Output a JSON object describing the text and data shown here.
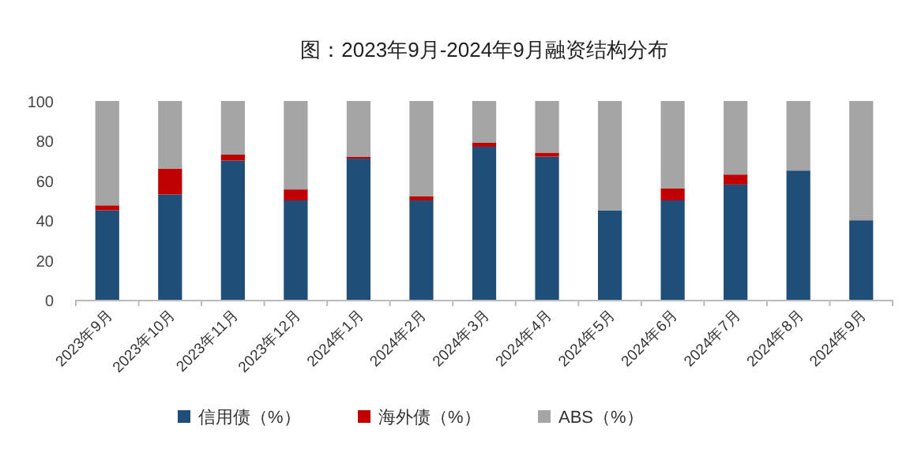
{
  "chart_data": {
    "type": "bar",
    "title": "图：2023年9月-2024年9月融资结构分布",
    "categories": [
      "2023年9月",
      "2023年10月",
      "2023年11月",
      "2023年12月",
      "2024年1月",
      "2024年2月",
      "2024年3月",
      "2024年4月",
      "2024年5月",
      "2024年6月",
      "2024年7月",
      "2024年8月",
      "2024年9月"
    ],
    "series": [
      {
        "name": "信用债（%）",
        "color": "#1f4e79",
        "values": [
          45,
          53,
          70,
          50,
          71,
          50,
          77,
          72,
          45,
          50,
          58,
          65,
          40
        ]
      },
      {
        "name": "海外债（%）",
        "color": "#c00000",
        "values": [
          2.5,
          13,
          3,
          5.5,
          1,
          2,
          2,
          2,
          0,
          6,
          5,
          0,
          0
        ]
      },
      {
        "name": "ABS（%）",
        "color": "#a5a5a5",
        "values": [
          52.5,
          34,
          27,
          44.5,
          28,
          48,
          21,
          26,
          55,
          44,
          37,
          35,
          60
        ]
      }
    ],
    "stacked": true,
    "ylim": [
      0,
      100
    ],
    "yticks": [
      0,
      20,
      40,
      60,
      80,
      100
    ],
    "legend": "bottom"
  }
}
